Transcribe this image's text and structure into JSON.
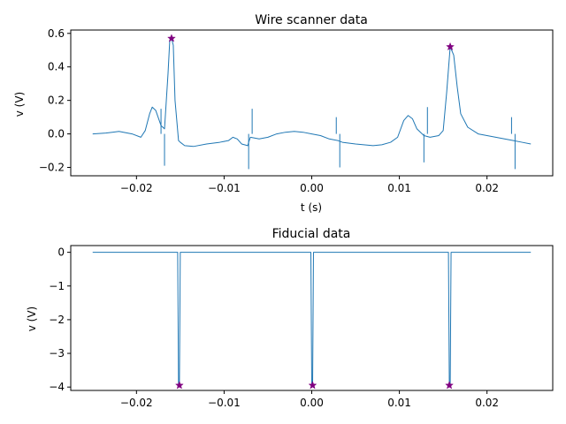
{
  "chart_data": [
    {
      "type": "line",
      "title": "Wire scanner data",
      "xlabel": "t (s)",
      "ylabel": "v (V)",
      "xlim": [
        -0.0275,
        0.0275
      ],
      "ylim": [
        -0.25,
        0.62
      ],
      "xticks": [
        -0.02,
        -0.01,
        0.0,
        0.01,
        0.02
      ],
      "xticklabels": [
        "−0.02",
        "−0.01",
        "0.00",
        "0.01",
        "0.02"
      ],
      "yticks": [
        -0.2,
        0.0,
        0.2,
        0.4,
        0.6
      ],
      "yticklabels": [
        "−0.2",
        "0.0",
        "0.2",
        "0.4",
        "0.6"
      ],
      "grid": false,
      "series_color": "#1f77b4",
      "marker_color": "#800080",
      "series": [
        {
          "x": [
            -0.025,
            -0.0235,
            -0.022,
            -0.0205,
            -0.0195,
            -0.019,
            -0.0185,
            -0.0182,
            -0.0178,
            -0.0172,
            -0.0168,
            -0.0164,
            -0.0162,
            -0.016,
            -0.0158,
            -0.0156,
            -0.0152,
            -0.015,
            -0.0145,
            -0.0135,
            -0.012,
            -0.0105,
            -0.0095,
            -0.009,
            -0.0085,
            -0.008,
            -0.0073,
            -0.0072,
            -0.007,
            -0.006,
            -0.005,
            -0.004,
            -0.003,
            -0.002,
            -0.001,
            0.0,
            0.001,
            0.002,
            0.003,
            0.0035,
            0.005,
            0.007,
            0.008,
            0.009,
            0.0098,
            0.0105,
            0.011,
            0.0115,
            0.012,
            0.0128,
            0.0135,
            0.0145,
            0.015,
            0.0154,
            0.0158,
            0.0162,
            0.0166,
            0.017,
            0.0178,
            0.019,
            0.021,
            0.023,
            0.024,
            0.025
          ],
          "y": [
            0.0,
            0.005,
            0.015,
            0.0,
            -0.02,
            0.02,
            0.12,
            0.16,
            0.14,
            0.05,
            0.03,
            0.36,
            0.56,
            0.57,
            0.53,
            0.2,
            -0.04,
            -0.05,
            -0.07,
            -0.075,
            -0.06,
            -0.05,
            -0.04,
            -0.02,
            -0.03,
            -0.06,
            -0.07,
            -0.05,
            -0.02,
            -0.03,
            -0.02,
            0.0,
            0.01,
            0.015,
            0.01,
            0.0,
            -0.01,
            -0.03,
            -0.04,
            -0.05,
            -0.06,
            -0.07,
            -0.065,
            -0.05,
            -0.02,
            0.08,
            0.11,
            0.09,
            0.03,
            -0.01,
            -0.02,
            -0.01,
            0.02,
            0.25,
            0.52,
            0.47,
            0.28,
            0.12,
            0.04,
            0.0,
            -0.02,
            -0.04,
            -0.05,
            -0.06
          ]
        }
      ],
      "spikes": [
        {
          "x": -0.0172,
          "y": 0.15
        },
        {
          "x": -0.0168,
          "y": -0.19
        },
        {
          "x": -0.0072,
          "y": -0.21
        },
        {
          "x": -0.0068,
          "y": 0.15
        },
        {
          "x": 0.0028,
          "y": 0.1
        },
        {
          "x": 0.0032,
          "y": -0.2
        },
        {
          "x": 0.0128,
          "y": -0.17
        },
        {
          "x": 0.0132,
          "y": 0.16
        },
        {
          "x": 0.0228,
          "y": 0.1
        },
        {
          "x": 0.0232,
          "y": -0.21
        }
      ],
      "markers": [
        {
          "x": -0.016,
          "y": 0.57
        },
        {
          "x": 0.0158,
          "y": 0.52
        }
      ]
    },
    {
      "type": "line",
      "title": "Fiducial data",
      "xlabel": "",
      "ylabel": "v (V)",
      "xlim": [
        -0.0275,
        0.0275
      ],
      "ylim": [
        -4.1,
        0.2
      ],
      "xticks": [
        -0.02,
        -0.01,
        0.0,
        0.01,
        0.02
      ],
      "xticklabels": [
        "−0.02",
        "−0.01",
        "0.00",
        "0.01",
        "0.02"
      ],
      "yticks": [
        -4,
        -3,
        -2,
        -1,
        0
      ],
      "yticklabels": [
        "−4",
        "−3",
        "−2",
        "−1",
        "0"
      ],
      "grid": false,
      "series_color": "#1f77b4",
      "marker_color": "#800080",
      "series": [
        {
          "x": [
            -0.025,
            -0.0153,
            -0.0152,
            -0.0151,
            -0.015,
            -0.0001,
            0.0,
            0.0001,
            0.0002,
            0.0156,
            0.0157,
            0.0158,
            0.0159,
            0.025
          ],
          "y": [
            0.0,
            0.0,
            -3.95,
            -3.95,
            0.0,
            0.0,
            -3.95,
            -3.95,
            0.0,
            0.0,
            -3.95,
            -3.95,
            0.0,
            0.0
          ]
        }
      ],
      "markers": [
        {
          "x": -0.0151,
          "y": -3.95
        },
        {
          "x": 0.0001,
          "y": -3.95
        },
        {
          "x": 0.0157,
          "y": -3.95
        }
      ]
    }
  ]
}
